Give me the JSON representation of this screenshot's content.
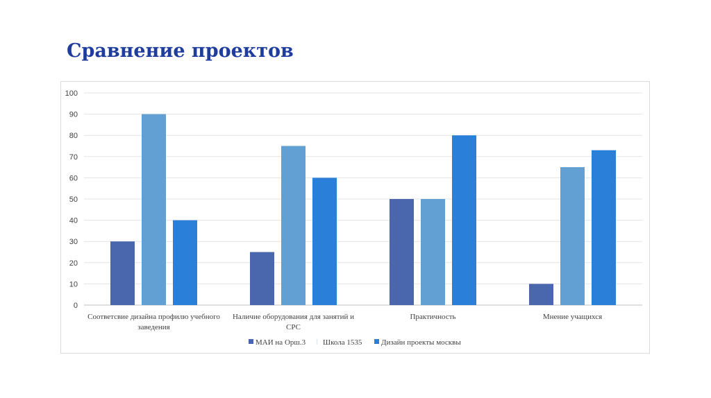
{
  "title": "Сравнение проектов",
  "chart_data": {
    "type": "bar",
    "title": "",
    "xlabel": "",
    "ylabel": "",
    "ylim": [
      0,
      100
    ],
    "yticks": [
      0,
      10,
      20,
      30,
      40,
      50,
      60,
      70,
      80,
      90,
      100
    ],
    "grid": true,
    "legend_position": "bottom",
    "categories": [
      [
        "Соответсвие дизайна профилю учебного",
        "заведения"
      ],
      [
        "Наличие оборудования для занятий и",
        "СРС"
      ],
      [
        "Практичность"
      ],
      [
        "Мнение учащихся"
      ]
    ],
    "series": [
      {
        "name": "МАИ на Орш.3",
        "color": "#4a66ac",
        "values": [
          30,
          25,
          50,
          10
        ]
      },
      {
        "name": "Школа 1535",
        "color": "#629fd2",
        "values": [
          90,
          75,
          50,
          65
        ]
      },
      {
        "name": "Дизайн проекты москвы",
        "color": "#2a7fd9",
        "values": [
          40,
          60,
          80,
          73
        ]
      }
    ]
  }
}
